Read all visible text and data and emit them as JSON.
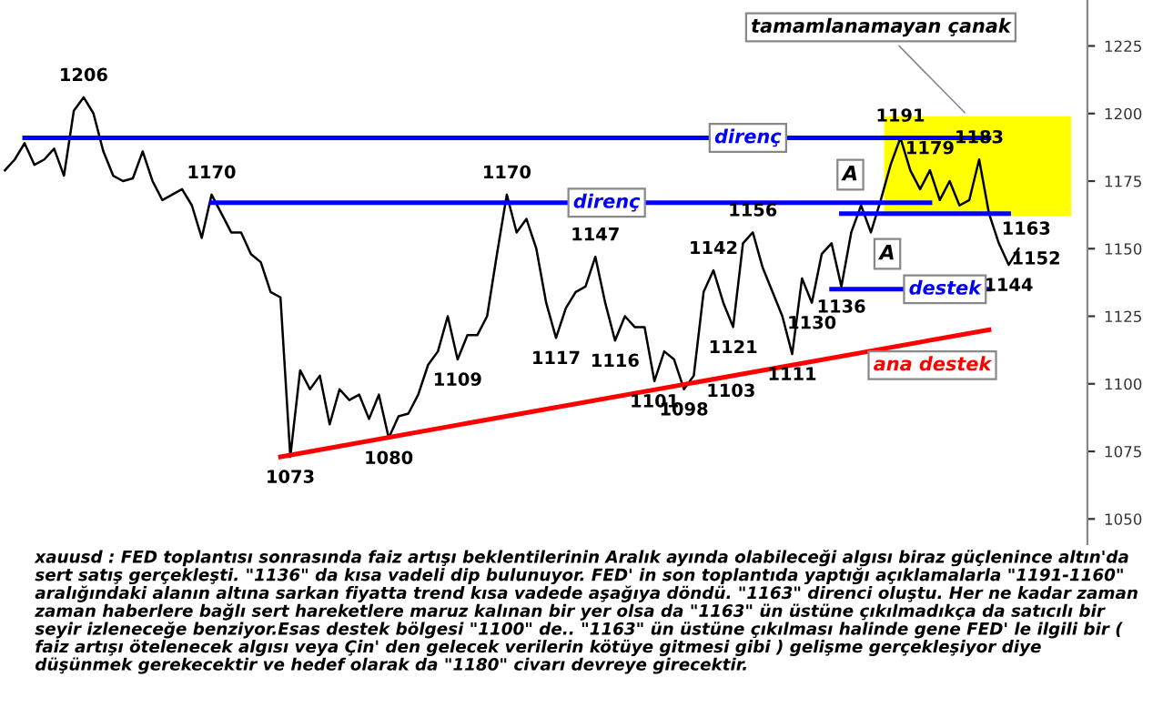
{
  "chart_data": {
    "type": "line",
    "categories": [
      null,
      null,
      null,
      null,
      null,
      null,
      null,
      null,
      null,
      null,
      null,
      null,
      null,
      null,
      null,
      null,
      null,
      null,
      null,
      null,
      null,
      null,
      null,
      null,
      null,
      null,
      null,
      null,
      null,
      null,
      null,
      null,
      null,
      null,
      null,
      null,
      null,
      null,
      null,
      null,
      null,
      null,
      null,
      null,
      null,
      null,
      null,
      null,
      null,
      null,
      null,
      null,
      null,
      null,
      null,
      null,
      null,
      null,
      null,
      null,
      null,
      null,
      null,
      null,
      null,
      null,
      null,
      null,
      null,
      null,
      null,
      null,
      null,
      null,
      null,
      null,
      null,
      null,
      null,
      null,
      null,
      null,
      null,
      null,
      null,
      null,
      null,
      null,
      null,
      null,
      null,
      null,
      null,
      null,
      null,
      null,
      null,
      null,
      null,
      null,
      null,
      null,
      null,
      null,
      null,
      null,
      null,
      null,
      null
    ],
    "ylim": [
      1040,
      1242
    ],
    "yticks": [
      1050,
      1075,
      1100,
      1125,
      1150,
      1175,
      1200,
      1225
    ],
    "tick_labels": "y",
    "grid": false,
    "bands": [
      {
        "axis": "y",
        "from": 1162,
        "to": 1199,
        "color": "#ffff00"
      }
    ],
    "series": [
      {
        "color": "#000000",
        "values": [
          1179,
          1183,
          1189,
          1181,
          1183,
          1187,
          1177,
          1201,
          1206,
          1200,
          1186,
          1177,
          1175,
          1176,
          1186,
          1175,
          1168,
          1170,
          1172,
          1166,
          1154,
          1170,
          1163,
          1156,
          1156,
          1148,
          1145,
          1134,
          1132,
          1073,
          1105,
          1098,
          1103,
          1085,
          1098,
          1094,
          1096,
          1087,
          1096,
          1080,
          1088,
          1089,
          1096,
          1107,
          1112,
          1125,
          1109,
          1118,
          1118,
          1125,
          1148,
          1170,
          1156,
          1161,
          1150,
          1130,
          1117,
          1128,
          1134,
          1136,
          1147,
          1130,
          1116,
          1125,
          1121,
          1121,
          1101,
          1112,
          1109,
          1098,
          1103,
          1134,
          1142,
          1130,
          1121,
          1152,
          1156,
          1143,
          1134,
          1125,
          1111,
          1139,
          1130,
          1148,
          1152,
          1136,
          1156,
          1166,
          1156,
          1168,
          1181,
          1191,
          1179,
          1172,
          1179,
          1168,
          1175,
          1166,
          1168,
          1183,
          1163,
          1152,
          1144,
          1150,
          null,
          null,
          null,
          null,
          null
        ],
        "value_labels": [
          null,
          null,
          null,
          null,
          null,
          null,
          null,
          null,
          "1206",
          null,
          null,
          null,
          null,
          null,
          null,
          null,
          null,
          null,
          null,
          null,
          null,
          "1170",
          null,
          null,
          null,
          null,
          null,
          null,
          null,
          "1073",
          null,
          null,
          null,
          null,
          null,
          null,
          null,
          null,
          null,
          "1080",
          null,
          null,
          null,
          null,
          null,
          null,
          "1109",
          null,
          null,
          null,
          null,
          "1170",
          null,
          null,
          null,
          null,
          "1117",
          null,
          null,
          null,
          "1147",
          null,
          "1116",
          null,
          null,
          null,
          "1101",
          null,
          null,
          "1098",
          "1103",
          null,
          "1142",
          null,
          "1121",
          null,
          "1156",
          null,
          null,
          null,
          "1111",
          null,
          "1130",
          null,
          null,
          "1136",
          null,
          null,
          null,
          null,
          null,
          "1191",
          null,
          null,
          "1179",
          null,
          null,
          null,
          null,
          "1183",
          "1163",
          "1152",
          "1144",
          null,
          null,
          null,
          null,
          null,
          null
        ]
      },
      {
        "type": "line",
        "name": "direnç",
        "color": "#0000ff",
        "values": [
          null,
          null,
          1191,
          null,
          null,
          null,
          null,
          null,
          null,
          null,
          null,
          null,
          null,
          null,
          null,
          null,
          null,
          null,
          null,
          null,
          null,
          null,
          null,
          null,
          null,
          null,
          null,
          null,
          null,
          null,
          null,
          null,
          null,
          null,
          null,
          null,
          null,
          null,
          null,
          null,
          null,
          null,
          null,
          null,
          null,
          null,
          null,
          null,
          null,
          null,
          null,
          null,
          null,
          null,
          null,
          null,
          null,
          null,
          null,
          null,
          null,
          null,
          null,
          null,
          null,
          null,
          null,
          null,
          null,
          null,
          null,
          null,
          null,
          null,
          null,
          null,
          null,
          null,
          null,
          null,
          null,
          null,
          null,
          null,
          null,
          null,
          null,
          null,
          null,
          null,
          null,
          null,
          null,
          null,
          null,
          null,
          null,
          null,
          null,
          null,
          1191,
          null,
          null,
          null,
          null,
          null,
          null,
          null,
          null
        ]
      },
      {
        "type": "line",
        "name": "direnç",
        "color": "#0000ff",
        "values": [
          null,
          null,
          null,
          null,
          null,
          null,
          null,
          null,
          null,
          null,
          null,
          null,
          null,
          null,
          null,
          null,
          null,
          null,
          null,
          null,
          null,
          1167,
          null,
          null,
          null,
          null,
          null,
          null,
          null,
          null,
          null,
          null,
          null,
          null,
          null,
          null,
          null,
          null,
          null,
          null,
          null,
          null,
          null,
          null,
          null,
          null,
          null,
          null,
          null,
          null,
          null,
          null,
          null,
          null,
          null,
          null,
          null,
          null,
          null,
          null,
          null,
          null,
          null,
          null,
          null,
          null,
          null,
          null,
          null,
          null,
          null,
          null,
          null,
          null,
          null,
          null,
          null,
          null,
          null,
          null,
          null,
          null,
          null,
          null,
          null,
          null,
          null,
          null,
          null,
          null,
          null,
          null,
          null,
          null,
          1167,
          null,
          null,
          null,
          null,
          null,
          null,
          null,
          null,
          null,
          null,
          null,
          null,
          null,
          null
        ]
      },
      {
        "type": "line",
        "color": "#0000ff",
        "values": [
          null,
          null,
          null,
          null,
          null,
          null,
          null,
          null,
          null,
          null,
          null,
          null,
          null,
          null,
          null,
          null,
          null,
          null,
          null,
          null,
          null,
          null,
          null,
          null,
          null,
          null,
          null,
          null,
          null,
          null,
          null,
          null,
          null,
          null,
          null,
          null,
          null,
          null,
          null,
          null,
          null,
          null,
          null,
          null,
          null,
          null,
          null,
          null,
          null,
          null,
          null,
          null,
          null,
          null,
          null,
          null,
          null,
          null,
          null,
          null,
          null,
          null,
          null,
          null,
          null,
          null,
          null,
          null,
          null,
          null,
          null,
          null,
          null,
          null,
          null,
          null,
          null,
          null,
          null,
          null,
          null,
          null,
          null,
          null,
          null,
          1163,
          null,
          null,
          null,
          null,
          null,
          null,
          null,
          null,
          null,
          null,
          null,
          null,
          null,
          null,
          null,
          null,
          1163,
          null,
          null,
          null,
          null,
          null,
          null
        ]
      },
      {
        "type": "line",
        "name": "destek",
        "color": "#0000ff",
        "values": [
          null,
          null,
          null,
          null,
          null,
          null,
          null,
          null,
          null,
          null,
          null,
          null,
          null,
          null,
          null,
          null,
          null,
          null,
          null,
          null,
          null,
          null,
          null,
          null,
          null,
          null,
          null,
          null,
          null,
          null,
          null,
          null,
          null,
          null,
          null,
          null,
          null,
          null,
          null,
          null,
          null,
          null,
          null,
          null,
          null,
          null,
          null,
          null,
          null,
          null,
          null,
          null,
          null,
          null,
          null,
          null,
          null,
          null,
          null,
          null,
          null,
          null,
          null,
          null,
          null,
          null,
          null,
          null,
          null,
          null,
          null,
          null,
          null,
          null,
          null,
          null,
          null,
          null,
          null,
          null,
          null,
          null,
          null,
          null,
          1135,
          null,
          null,
          null,
          null,
          null,
          null,
          null,
          null,
          null,
          null,
          null,
          null,
          null,
          null,
          null,
          1135,
          null,
          null,
          null,
          null,
          null,
          null,
          null,
          null
        ]
      },
      {
        "type": "line",
        "name": "ana destek",
        "color": "#ff0000",
        "values": [
          null,
          null,
          null,
          null,
          null,
          null,
          null,
          null,
          null,
          null,
          null,
          null,
          null,
          null,
          null,
          null,
          null,
          null,
          null,
          null,
          null,
          null,
          null,
          null,
          null,
          null,
          null,
          null,
          1073,
          null,
          null,
          null,
          null,
          null,
          null,
          null,
          null,
          null,
          null,
          null,
          null,
          null,
          null,
          null,
          null,
          null,
          null,
          null,
          null,
          null,
          null,
          null,
          null,
          null,
          null,
          null,
          null,
          null,
          null,
          null,
          null,
          null,
          null,
          null,
          null,
          null,
          null,
          null,
          null,
          null,
          null,
          null,
          null,
          null,
          null,
          null,
          null,
          null,
          null,
          null,
          null,
          null,
          null,
          null,
          null,
          null,
          null,
          null,
          null,
          null,
          null,
          null,
          null,
          null,
          null,
          null,
          null,
          null,
          null,
          null,
          1120,
          null,
          null,
          null,
          null,
          null,
          null,
          null,
          null
        ]
      }
    ],
    "annotations": [
      "tamamlanamayan çanak",
      "A",
      "A",
      "xauusd : FED toplantısı sonrasında faiz artışı beklentilerinin Aralık ayında olabileceği algısı biraz güçlenince altın'da\nsert satış gerçekleşti. \"1136\" da kısa vadeli dip bulunuyor. FED' in son toplantıda yaptığı açıklamalarla \"1191-1160\"\naralığındaki alanın altına sarkan fiyatta trend kısa vadede aşağıya döndü. \"1163\" direnci oluştu. Her ne kadar zaman\nzaman haberlere bağlı sert hareketlere maruz kalınan bir yer olsa da \"1163\" ün üstüne çıkılmadıkça da satıcılı bir\nseyir izleneceğe benziyor.Esas destek bölgesi \"1100\" de.. \"1163\" ün üstüne çıkılması halinde gene FED' le ilgili bir (\nfaiz artışı ötelenecek algısı veya Çin' den gelecek verilerin kötüye gitmesi gibi ) gelişme gerçekleşiyor diye\ndüşünmek gerekecektir ve hedef olarak da \"1180\" civarı devreye girecektir."
    ]
  }
}
